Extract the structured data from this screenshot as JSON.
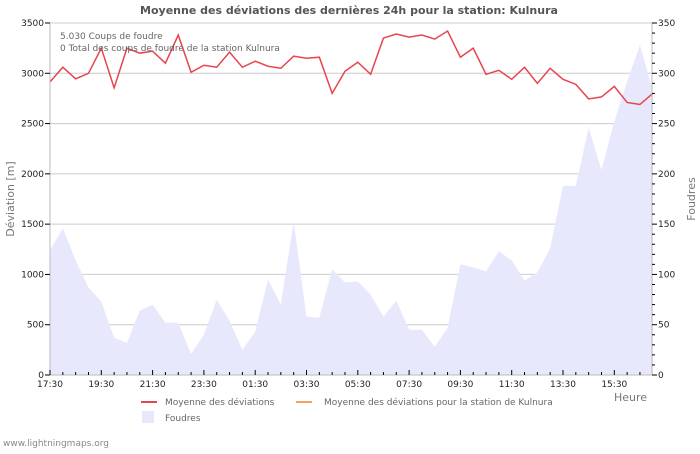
{
  "header": {
    "title": "Moyenne des déviations des dernières 24h pour la station: Kulnura"
  },
  "info": {
    "line1": "5.030  Coups de foudre",
    "line2": "0 Total des coups de foudre de la station Kulnura"
  },
  "axes": {
    "left_label": "Déviation  [m]",
    "right_label": "Foudres",
    "x_label": "Heure",
    "left_ticks": [
      "0",
      "500",
      "1000",
      "1500",
      "2000",
      "2500",
      "3000",
      "3500"
    ],
    "right_ticks": [
      "0",
      "50",
      "100",
      "150",
      "200",
      "250",
      "300",
      "350"
    ],
    "x_ticks": [
      "17:30",
      "19:30",
      "21:30",
      "23:30",
      "01:30",
      "03:30",
      "05:30",
      "07:30",
      "09:30",
      "11:30",
      "13:30",
      "15:30"
    ]
  },
  "legend": {
    "items": [
      {
        "label": "Moyenne des déviations",
        "color": "#e8444f",
        "type": "line"
      },
      {
        "label": "Moyenne des déviations pour la station de Kulnura",
        "color": "#f4a460",
        "type": "line"
      },
      {
        "label": "Foudres",
        "color": "#e8e8fc",
        "type": "area"
      }
    ]
  },
  "footer": {
    "text": "www.lightningmaps.org"
  },
  "colors": {
    "deviation_line": "#e8444f",
    "station_line": "#f4a460",
    "foudres_fill": "#e8e8fc",
    "grid": "#cccccc",
    "axis": "#bbbbbb"
  },
  "chart_data": {
    "type": "line",
    "title": "Moyenne des déviations des dernières 24h pour la station: Kulnura",
    "xlabel": "Heure",
    "ylabel": "Déviation  [m]",
    "y2label": "Foudres",
    "ylim": [
      0,
      3500
    ],
    "y2lim": [
      0,
      350
    ],
    "grid": true,
    "legend_position": "bottom",
    "x_start": "17:30",
    "x_step_minutes": 30,
    "x_tick_labels": [
      "17:30",
      "19:30",
      "21:30",
      "23:30",
      "01:30",
      "03:30",
      "05:30",
      "07:30",
      "09:30",
      "11:30",
      "13:30",
      "15:30"
    ],
    "series": [
      {
        "name": "Moyenne des déviations",
        "type": "line",
        "axis": "left",
        "color": "#e8444f",
        "values": [
          2915,
          3060,
          2945,
          3000,
          3250,
          2855,
          3250,
          3200,
          3220,
          3100,
          3380,
          3010,
          3080,
          3060,
          3210,
          3060,
          3120,
          3070,
          3050,
          3170,
          3150,
          3160,
          2800,
          3020,
          3110,
          2990,
          3350,
          3390,
          3360,
          3380,
          3340,
          3420,
          3160,
          3250,
          2990,
          3030,
          2940,
          3060,
          2900,
          3050,
          2940,
          2890,
          2745,
          2765,
          2870,
          2710,
          2690,
          2800
        ]
      },
      {
        "name": "Moyenne des déviations pour la station de Kulnura",
        "type": "line",
        "axis": "left",
        "color": "#f4a460",
        "values": []
      },
      {
        "name": "Foudres",
        "type": "area",
        "axis": "right",
        "color": "#e8e8fc",
        "values": [
          124,
          146,
          114,
          87,
          73,
          37,
          32,
          64,
          70,
          52,
          52,
          21,
          40,
          75,
          54,
          25,
          43,
          95,
          70,
          153,
          58,
          57,
          105,
          92,
          93,
          80,
          58,
          74,
          45,
          45,
          28,
          47,
          110,
          107,
          103,
          123,
          114,
          94,
          102,
          126,
          188,
          188,
          246,
          204,
          252,
          292,
          328,
          283
        ]
      }
    ]
  }
}
